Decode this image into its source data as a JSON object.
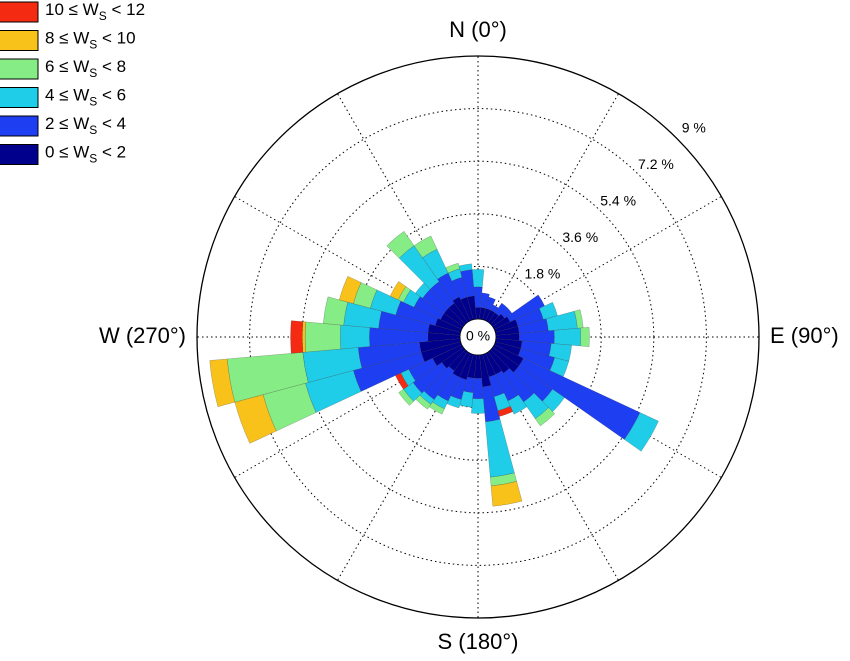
{
  "chart_data": {
    "type": "windrose",
    "rlim": [
      0,
      9
    ],
    "rticks": [
      {
        "value": 0,
        "label": "0 %"
      },
      {
        "value": 1.8,
        "label": "1.8 %"
      },
      {
        "value": 3.6,
        "label": "3.6 %"
      },
      {
        "value": 5.4,
        "label": "5.4 %"
      },
      {
        "value": 7.2,
        "label": "7.2 %"
      },
      {
        "value": 9,
        "label": "9 %"
      }
    ],
    "angle_labels": [
      {
        "value": 0,
        "label": "N (0°)"
      },
      {
        "value": 90,
        "label": "E (90°)"
      },
      {
        "value": 180,
        "label": "S (180°)"
      },
      {
        "value": 270,
        "label": "W (270°)"
      }
    ],
    "directions": [
      0,
      10,
      20,
      30,
      40,
      50,
      60,
      70,
      80,
      90,
      100,
      110,
      120,
      130,
      140,
      150,
      160,
      170,
      180,
      190,
      200,
      210,
      220,
      230,
      240,
      250,
      260,
      270,
      280,
      290,
      300,
      310,
      320,
      330,
      340,
      350
    ],
    "series": [
      {
        "name": "10 ≤ WS < 12",
        "color": "#f52a12",
        "values": [
          0,
          0,
          0,
          0,
          0,
          0,
          0,
          0,
          0,
          0,
          0,
          0,
          0,
          0,
          0,
          0,
          0.2,
          0,
          0,
          0,
          0,
          0,
          0,
          0,
          0.2,
          0,
          0,
          0.4,
          0,
          0,
          0,
          0,
          0,
          0,
          0,
          0
        ]
      },
      {
        "name": "8 ≤ WS < 10",
        "color": "#f8c21a",
        "values": [
          0,
          0,
          0,
          0,
          0,
          0,
          0,
          0,
          0,
          0,
          0,
          0,
          0,
          0,
          0,
          0,
          0,
          0.7,
          0,
          0,
          0,
          0,
          0,
          0,
          0,
          1.0,
          0.6,
          0.1,
          0,
          0.5,
          0.3,
          0,
          0,
          0,
          0,
          0
        ]
      },
      {
        "name": "6 ≤ WS < 8",
        "color": "#86ec86",
        "values": [
          0,
          0,
          0,
          0,
          0,
          0,
          0,
          0,
          0.2,
          0.3,
          0,
          0,
          0,
          0,
          0.3,
          0,
          0,
          0.3,
          0,
          0,
          0,
          0.2,
          0.2,
          0.2,
          0,
          1.5,
          2.6,
          1.2,
          0.7,
          0.6,
          0.2,
          0,
          0.6,
          0.5,
          0.2,
          0
        ]
      },
      {
        "name": "4 ≤ WS < 6",
        "color": "#20cde9",
        "values": [
          0.6,
          0,
          0,
          0,
          0,
          0,
          0,
          0.5,
          1.0,
          0.9,
          0.7,
          0.5,
          0.7,
          0.5,
          0.7,
          0.5,
          0.5,
          1.9,
          0.5,
          0.5,
          0.3,
          0.3,
          0.2,
          0.4,
          0.3,
          1.7,
          1.9,
          1.0,
          1.2,
          0.9,
          0.4,
          0.3,
          1.5,
          0.9,
          0.3,
          0.2
        ]
      },
      {
        "name": "2 ≤ WS < 4",
        "color": "#1e3ef2",
        "values": [
          0.7,
          0.5,
          0.4,
          0.2,
          0.4,
          0.3,
          1.3,
          0.9,
          1.0,
          1.2,
          1.0,
          1.2,
          4.4,
          1.4,
          1.2,
          1.0,
          0.7,
          1.2,
          0.7,
          0.5,
          0.7,
          0.9,
          1.2,
          1.2,
          0.9,
          2.4,
          2.1,
          2.0,
          1.7,
          1.4,
          1.0,
          0.9,
          0.9,
          0.9,
          0.7,
          0.9
        ]
      },
      {
        "name": "0 ≤ WS < 2",
        "color": "#00008c",
        "values": [
          0.4,
          0.4,
          0.4,
          0.4,
          0.4,
          0.5,
          0.6,
          0.8,
          0.8,
          0.8,
          0.9,
          0.9,
          1.1,
          1.1,
          0.9,
          0.8,
          0.8,
          1.1,
          0.8,
          0.8,
          0.9,
          0.9,
          0.8,
          0.9,
          1.1,
          1.4,
          1.4,
          1.1,
          1.1,
          0.9,
          0.8,
          0.8,
          0.8,
          0.9,
          0.8,
          0.8
        ]
      }
    ]
  }
}
